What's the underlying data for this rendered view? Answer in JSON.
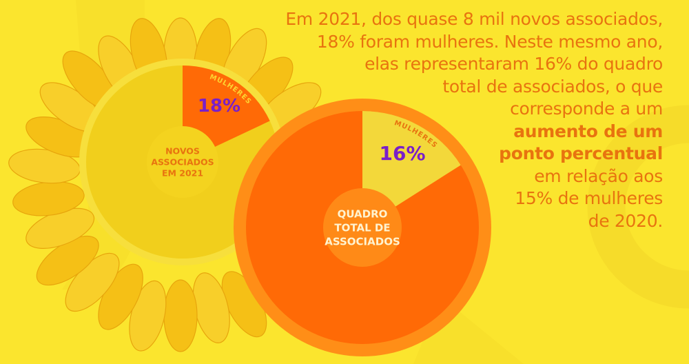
{
  "colors": {
    "background": "#fbe52e",
    "text_orange": "#e8730f",
    "percent_purple": "#7a1fc9",
    "sunflower_petal": "#f5c016",
    "yellow_pie_main": "#f1cf1c",
    "yellow_pie_rim": "#f7df3c",
    "orange_pie_main": "#ff6a06",
    "orange_pie_rim": "#ff8e17",
    "slice_orange": "#ff6a06",
    "slice_yellow": "#f3d83a"
  },
  "chart_data": [
    {
      "type": "pie",
      "center_label": [
        "NOVOS",
        "ASSOCIADOS",
        "EM 2021"
      ],
      "slice_label": "MULHERES",
      "value_label": "18%",
      "values": [
        18,
        82
      ]
    },
    {
      "type": "pie",
      "center_label": [
        "QUADRO",
        "TOTAL DE",
        "ASSOCIADOS"
      ],
      "slice_label": "MULHERES",
      "value_label": "16%",
      "values": [
        16,
        84
      ]
    }
  ],
  "paragraph": {
    "lines": [
      {
        "text": "Em 2021, dos quase 8 mil novos associados,",
        "bold": false
      },
      {
        "text": "18% foram mulheres. Neste mesmo ano,",
        "bold": false
      },
      {
        "text": "elas representaram 16% do quadro",
        "bold": false
      },
      {
        "text": "total de associados, o que",
        "bold": false
      },
      {
        "text": "corresponde a um",
        "bold": false
      },
      {
        "text": "aumento de um",
        "bold": true
      },
      {
        "text": "ponto percentual",
        "bold": true
      },
      {
        "text": "em relação aos",
        "bold": false
      },
      {
        "text": "15% de mulheres",
        "bold": false
      },
      {
        "text": "de 2020.",
        "bold": false
      }
    ]
  }
}
